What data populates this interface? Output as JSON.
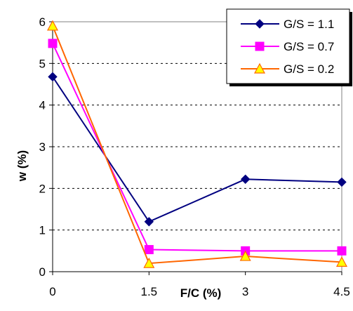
{
  "chart_data": {
    "type": "line",
    "x": [
      0,
      1.5,
      3,
      4.5
    ],
    "x_tick_labels": [
      "0",
      "1.5",
      "3",
      "4.5"
    ],
    "y_tick_labels": [
      "0",
      "1",
      "2",
      "3",
      "4",
      "5",
      "6"
    ],
    "xlabel": "F/C (%)",
    "ylabel": "w  (%)",
    "xlim": [
      0,
      4.5
    ],
    "ylim": [
      0,
      6
    ],
    "grid": "horizontal dashed",
    "legend_position": "top-right",
    "series": [
      {
        "name": "G/S = 1.1",
        "values": [
          4.68,
          1.2,
          2.22,
          2.15
        ],
        "color": "#000080",
        "fill": "#000080",
        "marker": "diamond"
      },
      {
        "name": "G/S = 0.7",
        "values": [
          5.48,
          0.53,
          0.5,
          0.5
        ],
        "color": "#ff00ff",
        "fill": "#ff00ff",
        "marker": "square"
      },
      {
        "name": "G/S = 0.2",
        "values": [
          5.9,
          0.2,
          0.37,
          0.23
        ],
        "color": "#ff6600",
        "fill": "#ffff00",
        "marker": "triangle"
      }
    ]
  }
}
